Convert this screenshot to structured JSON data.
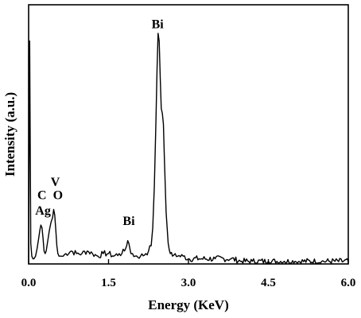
{
  "chart_data": {
    "type": "line",
    "title": "",
    "xlabel": "Energy (KeV)",
    "ylabel": "Intensity (a.u.)",
    "xlim": [
      0.0,
      6.0
    ],
    "ylim": [
      0,
      100
    ],
    "x_ticks": [
      0.0,
      1.5,
      3.0,
      4.5,
      6.0
    ],
    "x_tick_labels": [
      "0.0",
      "1.5",
      "3.0",
      "4.5",
      "6.0"
    ],
    "y_ticks_shown": false,
    "grid": false,
    "legend": "none",
    "series": [
      {
        "x": [
          0.0,
          0.02,
          0.04,
          0.06,
          0.08,
          0.1,
          0.13,
          0.16,
          0.19,
          0.21,
          0.23,
          0.25,
          0.27,
          0.29,
          0.31,
          0.33,
          0.36,
          0.39,
          0.42,
          0.45,
          0.47,
          0.49,
          0.51,
          0.53,
          0.55,
          0.57,
          0.6,
          0.65,
          0.7,
          0.8,
          0.9,
          1.0,
          1.1,
          1.2,
          1.3,
          1.4,
          1.5,
          1.6,
          1.7,
          1.75,
          1.8,
          1.84,
          1.86,
          1.88,
          1.9,
          1.92,
          1.95,
          2.0,
          2.1,
          2.2,
          2.25,
          2.3,
          2.33,
          2.36,
          2.39,
          2.41,
          2.43,
          2.45,
          2.47,
          2.49,
          2.51,
          2.53,
          2.55,
          2.58,
          2.62,
          2.66,
          2.7,
          2.75,
          2.8,
          2.9,
          3.0,
          3.2,
          3.5,
          3.8,
          4.0,
          4.2,
          4.5,
          4.8,
          5.0,
          5.5,
          6.0
        ],
        "y": [
          2,
          86,
          8,
          3,
          2,
          2,
          3,
          6,
          10,
          13,
          15,
          14,
          10,
          5,
          4,
          5,
          9,
          13,
          16,
          18,
          21,
          19,
          13,
          7,
          4,
          3,
          3,
          3,
          4,
          5,
          4,
          4,
          5,
          4,
          3,
          4,
          4,
          3,
          4,
          4,
          5,
          7,
          9,
          8,
          6,
          4,
          4,
          3,
          3,
          4,
          5,
          7,
          14,
          30,
          55,
          75,
          89,
          86,
          72,
          60,
          58,
          54,
          40,
          20,
          8,
          4,
          3,
          4,
          3,
          3,
          2,
          2,
          2,
          2,
          1,
          1,
          1,
          1,
          1,
          1,
          1
        ]
      }
    ],
    "annotations": [
      {
        "text": "Bi",
        "x": 2.42,
        "y": 91
      },
      {
        "text": "Bi",
        "x": 1.88,
        "y": 15
      },
      {
        "text": "V",
        "x": 0.5,
        "y": 30
      },
      {
        "text": "O",
        "x": 0.55,
        "y": 25
      },
      {
        "text": "C",
        "x": 0.25,
        "y": 25
      },
      {
        "text": "Ag",
        "x": 0.27,
        "y": 19
      }
    ]
  }
}
